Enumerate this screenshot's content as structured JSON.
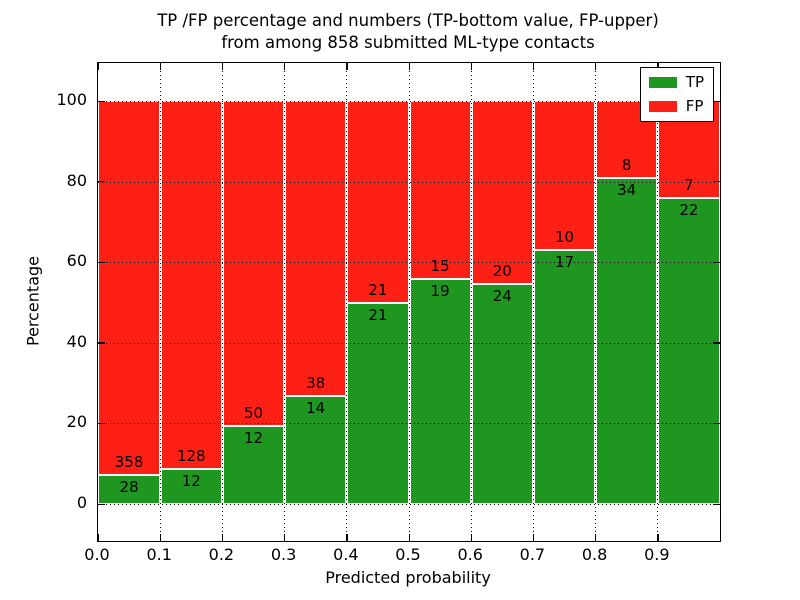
{
  "chart_data": {
    "type": "bar",
    "stacked": true,
    "normalized_to_percent": 100,
    "title": "TP /FP percentage and numbers (TP-bottom value, FP-upper)\nfrom among 858 submitted ML-type contacts",
    "title_line1": "TP /FP percentage and numbers (TP-bottom value, FP-upper)",
    "title_line2": "from among 858 submitted ML-type contacts",
    "xlabel": "Predicted probability",
    "ylabel": "Percentage",
    "xlim": [
      0.0,
      1.0
    ],
    "ylim": [
      -9.2,
      109.4
    ],
    "bin_width": 0.1,
    "bin_starts": [
      0.0,
      0.1,
      0.2,
      0.3,
      0.4,
      0.5,
      0.6,
      0.7,
      0.8,
      0.9
    ],
    "x_tick_labels": [
      "0.0",
      "0.1",
      "0.2",
      "0.3",
      "0.4",
      "0.5",
      "0.6",
      "0.7",
      "0.8",
      "0.9"
    ],
    "y_ticks": [
      0,
      20,
      40,
      60,
      80,
      100
    ],
    "y_tick_labels": [
      "0",
      "20",
      "40",
      "60",
      "80",
      "100"
    ],
    "grid": true,
    "grid_style": "dotted",
    "legend_position": "upper right",
    "series": [
      {
        "name": "TP",
        "color": "#1f9620",
        "counts": [
          28,
          12,
          12,
          14,
          21,
          19,
          24,
          17,
          34,
          22
        ]
      },
      {
        "name": "FP",
        "color": "#ff2015",
        "counts": [
          358,
          128,
          50,
          38,
          21,
          15,
          20,
          10,
          8,
          7
        ]
      }
    ],
    "tp_percent_by_bin": [
      7.3,
      8.6,
      19.4,
      26.9,
      50.0,
      55.9,
      54.5,
      63.0,
      81.0,
      75.9
    ]
  }
}
